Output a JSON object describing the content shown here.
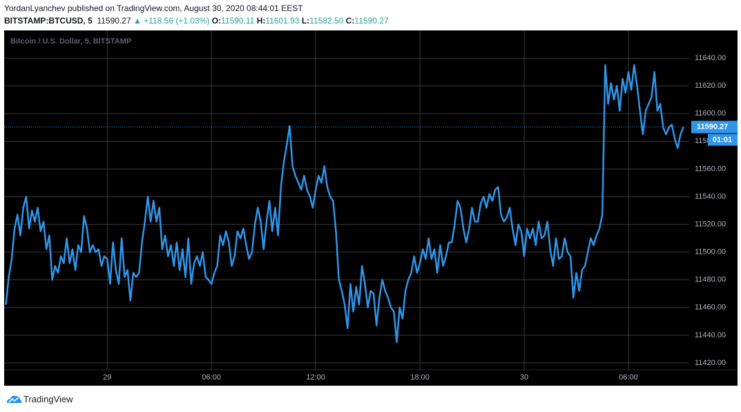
{
  "header": {
    "byline": "YordanLyanchev published on TradingView.com, August 30, 2020 08:44:01 EEST",
    "symbol": "BITSTAMP:BTCUSD, 5",
    "last": "11590.27",
    "arrow": "▲",
    "change": "+118.56 (+1.03%)",
    "o_label": "O:",
    "o": "11590.11",
    "h_label": "H:",
    "h": "11601.93",
    "l_label": "L:",
    "l": "11582.50",
    "c_label": "C:",
    "c": "11590.27"
  },
  "footer": {
    "brand": "TradingView"
  },
  "chart_data": {
    "type": "line",
    "title": "Bitcoin / U.S. Dollar, 5, BITSTAMP",
    "color": "#2f96ea",
    "grid": true,
    "countdown": "01:01",
    "xlim": [
      -356,
      2010
    ],
    "xticks": [
      {
        "value": 0,
        "label": "29"
      },
      {
        "value": 360,
        "label": "06:00"
      },
      {
        "value": 720,
        "label": "12:00"
      },
      {
        "value": 1080,
        "label": "18:00"
      },
      {
        "value": 1440,
        "label": "30"
      },
      {
        "value": 1800,
        "label": "06:00"
      }
    ],
    "ylim": [
      11415,
      11660
    ],
    "yticks": [
      {
        "value": 11420,
        "label": "11420.00"
      },
      {
        "value": 11440,
        "label": "11440.00"
      },
      {
        "value": 11460,
        "label": "11460.00"
      },
      {
        "value": 11480,
        "label": "11480.00"
      },
      {
        "value": 11500,
        "label": "11500.00"
      },
      {
        "value": 11520,
        "label": "11520.00"
      },
      {
        "value": 11540,
        "label": "11540.00"
      },
      {
        "value": 11560,
        "label": "11560.00"
      },
      {
        "value": 11580,
        "label": "11580.00"
      },
      {
        "value": 11600,
        "label": "11600.00"
      },
      {
        "value": 11620,
        "label": "11620.00"
      },
      {
        "value": 11640,
        "label": "11640.00"
      }
    ],
    "x": [
      -350,
      -340,
      -330,
      -320,
      -310,
      -300,
      -290,
      -280,
      -270,
      -260,
      -250,
      -240,
      -230,
      -220,
      -210,
      -200,
      -190,
      -180,
      -170,
      -160,
      -150,
      -140,
      -130,
      -120,
      -110,
      -100,
      -90,
      -80,
      -70,
      -60,
      -50,
      -40,
      -30,
      -20,
      -10,
      0,
      10,
      20,
      30,
      40,
      50,
      60,
      70,
      80,
      90,
      100,
      110,
      120,
      130,
      140,
      150,
      160,
      170,
      180,
      190,
      200,
      210,
      220,
      230,
      240,
      250,
      260,
      270,
      280,
      290,
      300,
      310,
      320,
      330,
      340,
      350,
      360,
      370,
      380,
      390,
      400,
      410,
      420,
      430,
      440,
      450,
      460,
      470,
      480,
      490,
      500,
      510,
      520,
      530,
      540,
      550,
      560,
      570,
      580,
      590,
      600,
      610,
      620,
      630,
      640,
      650,
      660,
      670,
      680,
      690,
      700,
      710,
      720,
      730,
      740,
      750,
      760,
      770,
      780,
      790,
      800,
      810,
      820,
      830,
      840,
      850,
      860,
      870,
      880,
      890,
      900,
      910,
      920,
      930,
      940,
      950,
      960,
      970,
      980,
      990,
      1000,
      1010,
      1020,
      1030,
      1040,
      1050,
      1060,
      1070,
      1080,
      1090,
      1100,
      1110,
      1120,
      1130,
      1140,
      1150,
      1160,
      1170,
      1180,
      1190,
      1200,
      1210,
      1220,
      1230,
      1240,
      1250,
      1260,
      1270,
      1280,
      1290,
      1300,
      1310,
      1320,
      1330,
      1340,
      1350,
      1360,
      1370,
      1380,
      1390,
      1400,
      1410,
      1420,
      1430,
      1440,
      1450,
      1460,
      1470,
      1480,
      1490,
      1500,
      1510,
      1520,
      1530,
      1540,
      1550,
      1560,
      1570,
      1580,
      1590,
      1600,
      1610,
      1620,
      1630,
      1640,
      1650,
      1660,
      1670,
      1680,
      1690,
      1700,
      1710,
      1720,
      1730,
      1740,
      1750,
      1760,
      1770,
      1780,
      1790,
      1800,
      1810,
      1820,
      1830,
      1840,
      1850,
      1860,
      1870,
      1880,
      1890,
      1900,
      1910,
      1920,
      1930,
      1940,
      1950,
      1960,
      1970,
      1980,
      1990
    ],
    "values": [
      11462,
      11482,
      11495,
      11517,
      11527,
      11512,
      11532,
      11540,
      11517,
      11530,
      11522,
      11532,
      11515,
      11522,
      11502,
      11512,
      11480,
      11490,
      11485,
      11497,
      11492,
      11510,
      11492,
      11502,
      11487,
      11505,
      11500,
      11526,
      11517,
      11500,
      11505,
      11500,
      11502,
      11490,
      11497,
      11495,
      11477,
      11507,
      11487,
      11477,
      11510,
      11482,
      11487,
      11465,
      11485,
      11482,
      11485,
      11507,
      11522,
      11540,
      11522,
      11537,
      11522,
      11532,
      11502,
      11512,
      11497,
      11505,
      11490,
      11507,
      11487,
      11502,
      11482,
      11510,
      11477,
      11492,
      11497,
      11490,
      11500,
      11482,
      11480,
      11477,
      11485,
      11490,
      11512,
      11505,
      11515,
      11507,
      11490,
      11497,
      11515,
      11510,
      11517,
      11505,
      11495,
      11500,
      11520,
      11532,
      11522,
      11502,
      11522,
      11537,
      11515,
      11532,
      11512,
      11547,
      11565,
      11577,
      11591,
      11562,
      11555,
      11550,
      11545,
      11555,
      11545,
      11540,
      11532,
      11545,
      11555,
      11550,
      11562,
      11547,
      11540,
      11537,
      11515,
      11480,
      11472,
      11462,
      11445,
      11477,
      11457,
      11475,
      11462,
      11490,
      11477,
      11460,
      11472,
      11470,
      11447,
      11467,
      11480,
      11472,
      11467,
      11460,
      11457,
      11435,
      11460,
      11452,
      11472,
      11480,
      11485,
      11497,
      11485,
      11492,
      11502,
      11495,
      11510,
      11495,
      11502,
      11485,
      11505,
      11490,
      11497,
      11507,
      11507,
      11520,
      11537,
      11532,
      11517,
      11507,
      11517,
      11532,
      11522,
      11522,
      11535,
      11540,
      11532,
      11542,
      11537,
      11545,
      11547,
      11527,
      11522,
      11525,
      11532,
      11517,
      11505,
      11520,
      11515,
      11497,
      11517,
      11510,
      11517,
      11505,
      11522,
      11510,
      11512,
      11522,
      11502,
      11490,
      11510,
      11495,
      11497,
      11510,
      11500,
      11497,
      11467,
      11485,
      11472,
      11487,
      11490,
      11500,
      11510,
      11505,
      11512,
      11517,
      11527,
      11635,
      11607,
      11622,
      11610,
      11620,
      11602,
      11625,
      11615,
      11630,
      11617,
      11635,
      11620,
      11602,
      11585,
      11602,
      11607,
      11612,
      11630,
      11602,
      11607,
      11590,
      11585,
      11590,
      11592,
      11582,
      11575,
      11585,
      11590.27
    ]
  }
}
